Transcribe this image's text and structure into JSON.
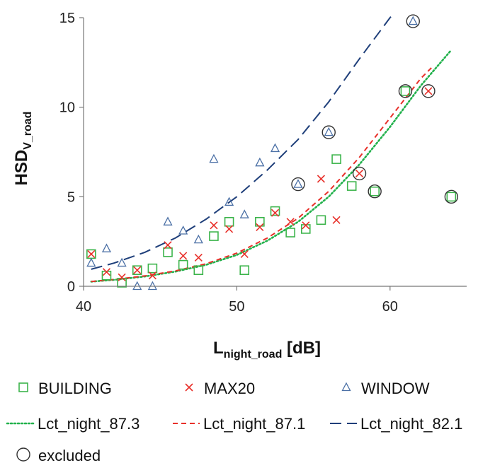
{
  "chart_data": {
    "type": "scatter",
    "xlabel": {
      "main": "L",
      "sub": "night_road",
      "suffix": " [dB]"
    },
    "ylabel": {
      "main": "HSD",
      "sub": "V_road"
    },
    "xlim": [
      40,
      65
    ],
    "ylim": [
      0,
      15
    ],
    "xticks": [
      40,
      50,
      60
    ],
    "yticks": [
      0,
      5,
      10,
      15
    ],
    "grid": false,
    "legend_position": "bottom",
    "series": [
      {
        "name": "BUILDING",
        "kind": "points",
        "marker": "square",
        "color": "#3cb44b",
        "points": [
          [
            40.5,
            1.8
          ],
          [
            41.5,
            0.6
          ],
          [
            42.5,
            0.2
          ],
          [
            43.5,
            0.9
          ],
          [
            44.5,
            1.0
          ],
          [
            45.5,
            1.9
          ],
          [
            46.5,
            1.2
          ],
          [
            47.5,
            0.9
          ],
          [
            48.5,
            2.8
          ],
          [
            49.5,
            3.6
          ],
          [
            50.5,
            0.9
          ],
          [
            51.5,
            3.6
          ],
          [
            52.5,
            4.2
          ],
          [
            53.5,
            3.0
          ],
          [
            54.5,
            3.2
          ],
          [
            55.5,
            3.7
          ],
          [
            56.5,
            7.1
          ],
          [
            57.5,
            5.6
          ],
          [
            59.0,
            5.3
          ],
          [
            61.0,
            10.9
          ],
          [
            64.0,
            5.0
          ]
        ]
      },
      {
        "name": "MAX20",
        "kind": "points",
        "marker": "cross",
        "color": "#e8302a",
        "points": [
          [
            40.5,
            1.8
          ],
          [
            41.5,
            0.8
          ],
          [
            42.5,
            0.5
          ],
          [
            43.5,
            0.9
          ],
          [
            44.5,
            0.6
          ],
          [
            45.5,
            2.3
          ],
          [
            46.5,
            1.7
          ],
          [
            47.5,
            1.6
          ],
          [
            48.5,
            3.4
          ],
          [
            49.5,
            3.2
          ],
          [
            50.5,
            1.8
          ],
          [
            51.5,
            3.3
          ],
          [
            52.5,
            4.1
          ],
          [
            53.5,
            3.6
          ],
          [
            54.5,
            3.4
          ],
          [
            55.5,
            6.0
          ],
          [
            56.5,
            3.7
          ],
          [
            58.0,
            6.3
          ],
          [
            62.5,
            10.9
          ]
        ]
      },
      {
        "name": "WINDOW",
        "kind": "points",
        "marker": "triangle",
        "color": "#4a6fa5",
        "points": [
          [
            40.5,
            1.3
          ],
          [
            41.5,
            2.1
          ],
          [
            42.5,
            1.3
          ],
          [
            43.5,
            0.0
          ],
          [
            44.5,
            0.0
          ],
          [
            45.5,
            3.6
          ],
          [
            46.5,
            3.1
          ],
          [
            47.5,
            2.6
          ],
          [
            48.5,
            7.1
          ],
          [
            49.5,
            4.7
          ],
          [
            50.5,
            4.0
          ],
          [
            51.5,
            6.9
          ],
          [
            52.5,
            7.7
          ],
          [
            54.0,
            5.7
          ],
          [
            56.0,
            8.6
          ],
          [
            61.5,
            14.8
          ]
        ]
      },
      {
        "name": "Lct_night_87.3",
        "kind": "curve",
        "dash": "dotted",
        "color": "#22b14c",
        "x": [
          40.5,
          42,
          44,
          46,
          48,
          50,
          52,
          54,
          56,
          58,
          60,
          62,
          64
        ],
        "y": [
          0.26,
          0.36,
          0.55,
          0.82,
          1.2,
          1.75,
          2.55,
          3.6,
          5.0,
          6.8,
          8.9,
          11.2,
          13.2
        ]
      },
      {
        "name": "Lct_night_87.1",
        "kind": "curve",
        "dash": "dashed",
        "color": "#e8302a",
        "x": [
          40.5,
          42,
          44,
          46,
          48,
          50,
          52,
          54,
          56,
          58,
          60,
          62,
          62.7
        ],
        "y": [
          0.27,
          0.38,
          0.58,
          0.86,
          1.26,
          1.85,
          2.7,
          3.8,
          5.3,
          7.2,
          9.4,
          11.6,
          12.2
        ]
      },
      {
        "name": "Lct_night_82.1",
        "kind": "curve",
        "dash": "longdash",
        "color": "#1f3f7a",
        "x": [
          40.5,
          42,
          44,
          46,
          48,
          50,
          52,
          54,
          56,
          58,
          60,
          60.2
        ],
        "y": [
          0.95,
          1.3,
          1.9,
          2.7,
          3.75,
          5.0,
          6.5,
          8.2,
          10.3,
          12.7,
          15.0,
          15.2
        ]
      },
      {
        "name": "excluded",
        "kind": "points",
        "marker": "circle",
        "color": "#333333",
        "points": [
          [
            54.0,
            5.7
          ],
          [
            56.0,
            8.6
          ],
          [
            58.0,
            6.3
          ],
          [
            59.0,
            5.3
          ],
          [
            61.0,
            10.9
          ],
          [
            61.5,
            14.8
          ],
          [
            62.5,
            10.9
          ],
          [
            64.0,
            5.0
          ]
        ]
      }
    ]
  }
}
